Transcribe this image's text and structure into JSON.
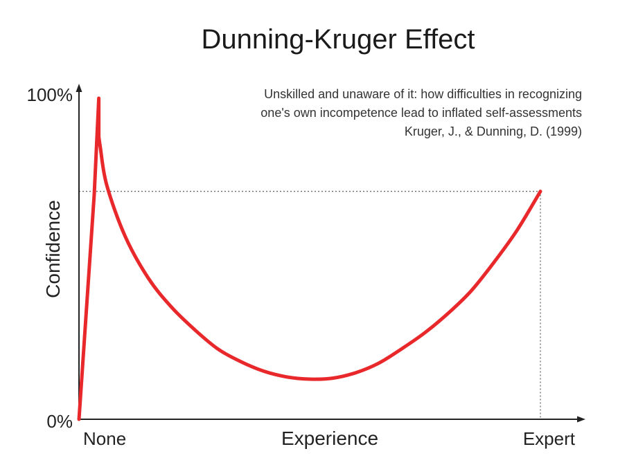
{
  "chart_data": {
    "type": "line",
    "title": "Dunning-Kruger Effect",
    "citation": [
      "Unskilled and unaware of it: how difficulties in recognizing",
      "one's own incompetence lead to inflated self-assessments",
      "Kruger, J., & Dunning, D. (1999)"
    ],
    "xlabel": "Experience",
    "ylabel": "Confidence",
    "x_tick_labels": {
      "start": "None",
      "end": "Expert"
    },
    "y_tick_labels": {
      "start": "0%",
      "end": "100%"
    },
    "xlim": [
      0,
      100
    ],
    "ylim": [
      0,
      100
    ],
    "grid": false,
    "reference_value": 71,
    "series": [
      {
        "color": "#e8282b",
        "points": [
          [
            0,
            0
          ],
          [
            3.3,
            70
          ],
          [
            4.3,
            100
          ],
          [
            4.3,
            88
          ],
          [
            4.6,
            85
          ],
          [
            6,
            73
          ],
          [
            10,
            57
          ],
          [
            15,
            44
          ],
          [
            20,
            35
          ],
          [
            25,
            28
          ],
          [
            30,
            22
          ],
          [
            35,
            18
          ],
          [
            40,
            15
          ],
          [
            45,
            13.2
          ],
          [
            50,
            12.5
          ],
          [
            55,
            12.8
          ],
          [
            60,
            14.5
          ],
          [
            65,
            17.5
          ],
          [
            70,
            22
          ],
          [
            75,
            27
          ],
          [
            80,
            33
          ],
          [
            85,
            40
          ],
          [
            90,
            49
          ],
          [
            95,
            59
          ],
          [
            100,
            71
          ]
        ]
      }
    ],
    "colors": {
      "curve": "#e8282b",
      "axis": "#222222",
      "guide": "#666666"
    }
  }
}
